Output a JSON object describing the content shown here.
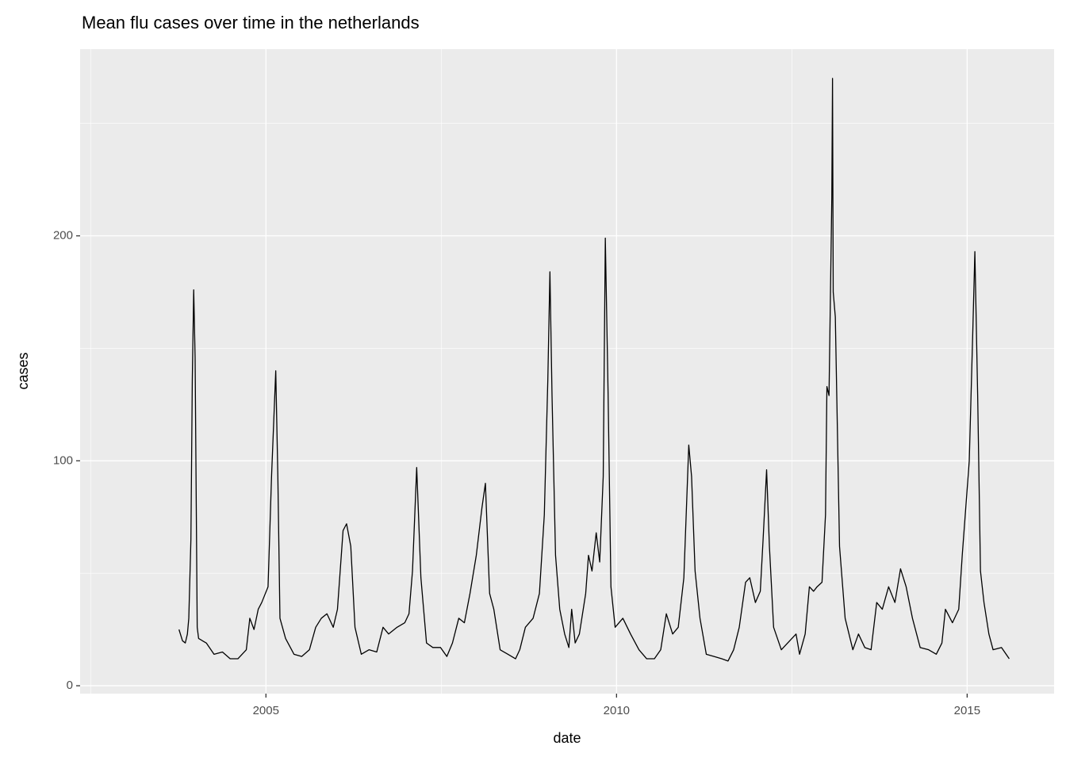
{
  "chart_data": {
    "type": "line",
    "title": "Mean flu cases over time in the netherlands",
    "x_label": "date",
    "y_label": "cases",
    "x": [
      2003.76,
      2003.81,
      2003.85,
      2003.88,
      2003.9,
      2003.93,
      2003.95,
      2003.97,
      2003.99,
      2004.02,
      2004.04,
      2004.15,
      2004.26,
      2004.38,
      2004.49,
      2004.6,
      2004.72,
      2004.77,
      2004.83,
      2004.89,
      2004.94,
      2005.03,
      2005.08,
      2005.14,
      2005.17,
      2005.2,
      2005.28,
      2005.4,
      2005.51,
      2005.62,
      2005.71,
      2005.79,
      2005.87,
      2005.96,
      2006.02,
      2006.1,
      2006.15,
      2006.21,
      2006.27,
      2006.36,
      2006.47,
      2006.58,
      2006.67,
      2006.75,
      2006.87,
      2006.98,
      2007.04,
      2007.09,
      2007.15,
      2007.21,
      2007.29,
      2007.38,
      2007.49,
      2007.58,
      2007.66,
      2007.75,
      2007.83,
      2007.91,
      2008.0,
      2008.08,
      2008.13,
      2008.19,
      2008.25,
      2008.34,
      2008.45,
      2008.56,
      2008.62,
      2008.7,
      2008.81,
      2008.9,
      2008.97,
      2009.02,
      2009.05,
      2009.08,
      2009.13,
      2009.19,
      2009.26,
      2009.32,
      2009.36,
      2009.41,
      2009.47,
      2009.56,
      2009.6,
      2009.65,
      2009.71,
      2009.76,
      2009.81,
      2009.84,
      2009.88,
      2009.92,
      2009.98,
      2010.09,
      2010.2,
      2010.32,
      2010.43,
      2010.54,
      2010.63,
      2010.71,
      2010.8,
      2010.88,
      2010.96,
      2011.03,
      2011.07,
      2011.12,
      2011.19,
      2011.28,
      2011.39,
      2011.5,
      2011.59,
      2011.67,
      2011.75,
      2011.84,
      2011.9,
      2011.98,
      2012.05,
      2012.09,
      2012.14,
      2012.18,
      2012.24,
      2012.35,
      2012.47,
      2012.56,
      2012.61,
      2012.69,
      2012.75,
      2012.81,
      2012.86,
      2012.93,
      2012.98,
      2013.0,
      2013.03,
      2013.07,
      2013.08,
      2013.09,
      2013.12,
      2013.18,
      2013.26,
      2013.37,
      2013.45,
      2013.54,
      2013.63,
      2013.71,
      2013.79,
      2013.88,
      2013.97,
      2014.05,
      2014.13,
      2014.22,
      2014.33,
      2014.45,
      2014.56,
      2014.64,
      2014.69,
      2014.79,
      2014.88,
      2014.93,
      2014.98,
      2015.03,
      2015.08,
      2015.11,
      2015.15,
      2015.19,
      2015.24,
      2015.31,
      2015.37,
      2015.49,
      2015.6
    ],
    "series": [
      {
        "color": "#000000",
        "values": [
          25,
          20,
          19,
          23,
          30,
          65,
          136,
          176,
          146,
          26,
          21,
          19,
          14,
          15,
          12,
          12,
          16,
          30,
          25,
          34,
          37,
          44,
          93,
          140,
          93,
          30,
          21,
          14,
          13,
          16,
          26,
          30,
          32,
          26,
          34,
          69,
          72,
          62,
          26,
          14,
          16,
          15,
          26,
          23,
          26,
          28,
          32,
          51,
          97,
          48,
          19,
          17,
          17,
          13,
          19,
          30,
          28,
          41,
          58,
          79,
          90,
          41,
          34,
          16,
          14,
          12,
          16,
          26,
          30,
          41,
          76,
          136,
          184,
          129,
          58,
          34,
          23,
          17,
          34,
          19,
          23,
          41,
          58,
          51,
          68,
          55,
          93,
          199,
          129,
          44,
          26,
          30,
          23,
          16,
          12,
          12,
          16,
          32,
          23,
          26,
          48,
          107,
          93,
          51,
          30,
          14,
          13,
          12,
          11,
          16,
          26,
          46,
          48,
          37,
          42,
          65,
          96,
          62,
          26,
          16,
          20,
          23,
          14,
          23,
          44,
          42,
          44,
          46,
          76,
          133,
          129,
          217,
          270,
          175,
          164,
          62,
          30,
          16,
          23,
          17,
          16,
          37,
          34,
          44,
          37,
          52,
          44,
          30,
          17,
          16,
          14,
          19,
          34,
          28,
          34,
          58,
          79,
          100,
          157,
          193,
          129,
          51,
          37,
          23,
          16,
          17,
          12
        ]
      }
    ],
    "xlim": [
      2002.35,
      2016.24
    ],
    "xticks": [
      2005,
      2010,
      2015
    ],
    "x_minor_ticks": [
      2002.5,
      2007.5,
      2012.5
    ],
    "ylim": [
      -3.5,
      283
    ],
    "yticks": [
      0,
      100,
      200
    ],
    "y_minor_ticks": [
      50,
      150,
      250
    ],
    "grid": true,
    "panel_color": "#ebebeb"
  }
}
